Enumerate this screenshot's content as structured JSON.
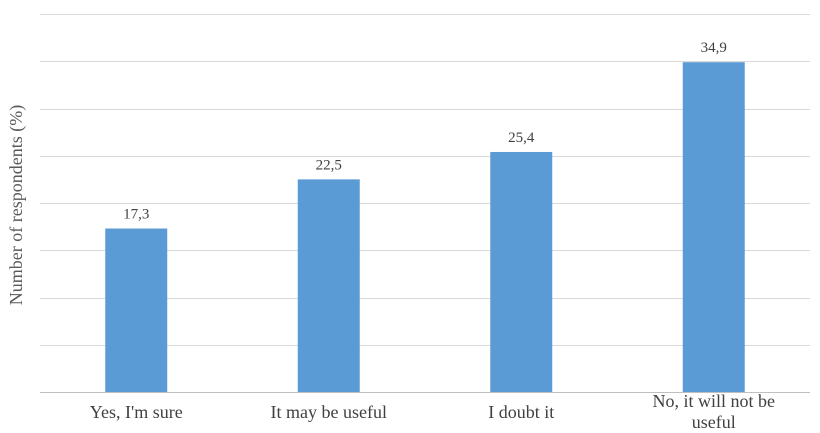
{
  "chart_data": {
    "type": "bar",
    "title": "",
    "xlabel": "",
    "ylabel": "Number of respondents (%)",
    "ylim": [
      0,
      40
    ],
    "grid": true,
    "legend": "none",
    "bar_color": "#5b9bd5",
    "categories": [
      [
        "Yes, I'm sure"
      ],
      [
        "It may be useful"
      ],
      [
        "I doubt it"
      ],
      [
        "No, it will not be",
        "useful"
      ]
    ],
    "values": [
      17.3,
      22.5,
      25.4,
      34.9
    ],
    "value_labels": [
      "17,3",
      "22,5",
      "25,4",
      "34,9"
    ]
  }
}
